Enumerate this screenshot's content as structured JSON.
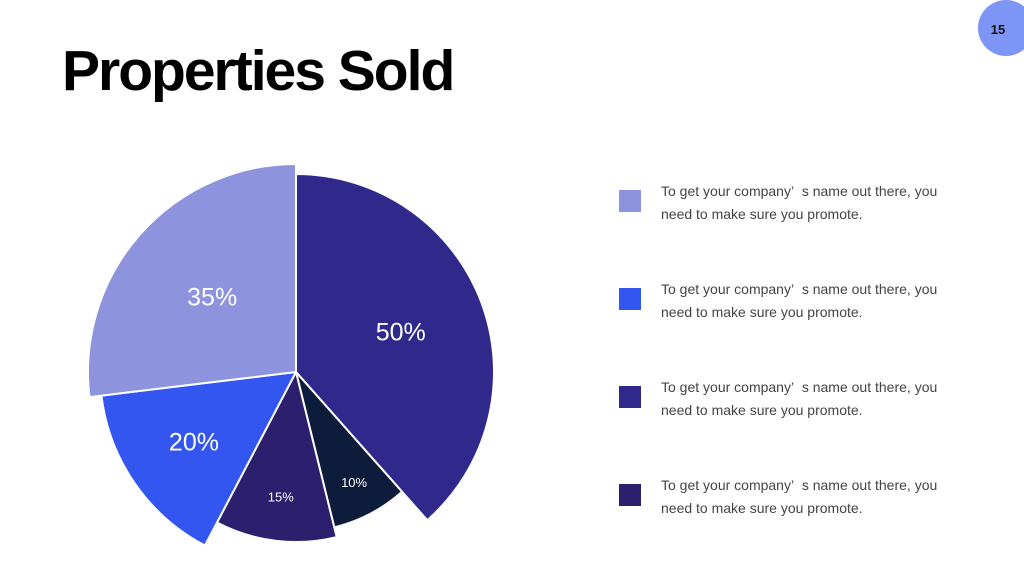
{
  "page_number": "15",
  "chart_data": {
    "type": "pie",
    "title": "Properties Sold",
    "slices": [
      {
        "label": "50%",
        "value": 50,
        "color": "#30288a"
      },
      {
        "label": "10%",
        "value": 10,
        "color": "#0e1c3c"
      },
      {
        "label": "15%",
        "value": 15,
        "color": "#2b1f6e"
      },
      {
        "label": "20%",
        "value": 20,
        "color": "#3355f0"
      },
      {
        "label": "35%",
        "value": 35,
        "color": "#8d93dd"
      }
    ]
  },
  "legend": [
    {
      "text": "To get your company’  s name out there, you need to make sure you promote.",
      "color": "#8d93dd"
    },
    {
      "text": "To get your company’  s name out there, you need to make sure you promote.",
      "color": "#3355f0"
    },
    {
      "text": "To get your company’  s name out there, you need to make sure you promote.",
      "color": "#30288a"
    },
    {
      "text": "To get your company’  s name out there, you need to make sure you promote.",
      "color": "#2b1f6e"
    }
  ]
}
